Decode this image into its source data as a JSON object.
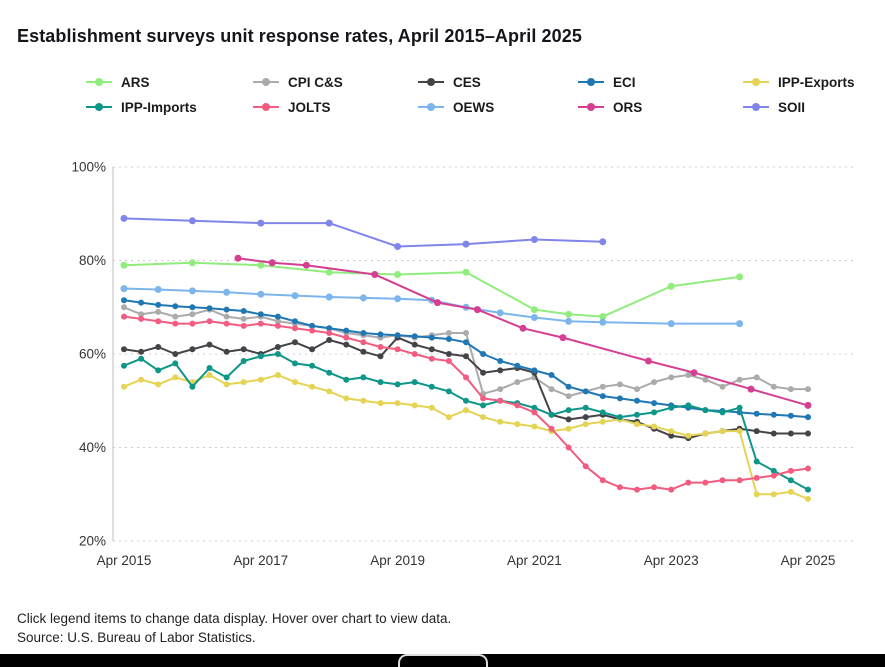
{
  "footer": {
    "hint": "Click legend items to change data display. Hover over chart to view data.",
    "source": "Source: U.S. Bureau of Labor Statistics."
  },
  "chart_data": {
    "type": "line",
    "title": "Establishment surveys unit response rates, April 2015–April 2025",
    "x_unit": "months since April 2015",
    "x_tick_months": [
      0,
      24,
      48,
      72,
      96,
      120
    ],
    "x_tick_labels": [
      "Apr 2015",
      "Apr 2017",
      "Apr 2019",
      "Apr 2021",
      "Apr 2023",
      "Apr 2025"
    ],
    "y_ticks": [
      20,
      40,
      60,
      80,
      100
    ],
    "y_tick_labels": [
      "20%",
      "40%",
      "60%",
      "80%",
      "100%"
    ],
    "ylim": [
      20,
      100
    ],
    "y_format": "percent",
    "grid": "dotted horizontal gridlines",
    "legend_position": "top",
    "series": [
      {
        "name": "ARS",
        "color": "#90ed7d",
        "x": [
          0,
          12,
          24,
          36,
          48,
          60,
          72,
          78,
          84,
          96,
          108
        ],
        "values": [
          79,
          79.5,
          79,
          77.5,
          77,
          77.5,
          69.5,
          68.5,
          68,
          74.5,
          76.5
        ]
      },
      {
        "name": "CPI C&S",
        "color": "#ababab",
        "x": [
          0,
          3,
          6,
          9,
          12,
          15,
          18,
          21,
          24,
          27,
          30,
          33,
          36,
          39,
          42,
          45,
          48,
          51,
          54,
          57,
          60,
          63,
          66,
          69,
          72,
          75,
          78,
          81,
          84,
          87,
          90,
          93,
          96,
          99,
          102,
          105,
          108,
          111,
          114,
          117,
          120
        ],
        "values": [
          70,
          68.5,
          69,
          68,
          68.5,
          69.5,
          68,
          67.5,
          68,
          67,
          66.5,
          66,
          65.5,
          64.5,
          64,
          63.5,
          64,
          63.5,
          64,
          64.5,
          64.5,
          51.5,
          52.5,
          54,
          55,
          52.5,
          51,
          52,
          53,
          53.5,
          52.5,
          54,
          55,
          55.5,
          54.5,
          53,
          54.5,
          55,
          53,
          52.5,
          52.5
        ]
      },
      {
        "name": "CES",
        "color": "#434348",
        "x": [
          0,
          3,
          6,
          9,
          12,
          15,
          18,
          21,
          24,
          27,
          30,
          33,
          36,
          39,
          42,
          45,
          48,
          51,
          54,
          57,
          60,
          63,
          66,
          69,
          72,
          75,
          78,
          81,
          84,
          87,
          90,
          93,
          96,
          99,
          102,
          105,
          108,
          111,
          114,
          117,
          120
        ],
        "values": [
          61,
          60.5,
          61.5,
          60,
          61,
          62,
          60.5,
          61,
          60,
          61.5,
          62.5,
          61,
          63,
          62,
          60.5,
          59.5,
          63.5,
          62,
          61,
          60,
          59.5,
          56,
          56.5,
          57,
          56,
          47,
          46,
          46.5,
          47,
          46,
          45.5,
          44,
          42.5,
          42,
          43,
          43.5,
          44,
          43.5,
          43,
          43,
          43
        ]
      },
      {
        "name": "ECI",
        "color": "#1f77b4",
        "x": [
          0,
          3,
          6,
          9,
          12,
          15,
          18,
          21,
          24,
          27,
          30,
          33,
          36,
          39,
          42,
          45,
          48,
          51,
          54,
          57,
          60,
          63,
          66,
          69,
          72,
          75,
          78,
          81,
          84,
          87,
          90,
          93,
          96,
          99,
          102,
          105,
          108,
          111,
          114,
          117,
          120
        ],
        "values": [
          71.5,
          71,
          70.5,
          70.2,
          70,
          69.8,
          69.5,
          69.2,
          68.5,
          68,
          67,
          66,
          65.5,
          65,
          64.5,
          64.2,
          64,
          63.8,
          63.5,
          63.2,
          62.5,
          60,
          58.5,
          57.5,
          56.5,
          55.5,
          53,
          52,
          51,
          50.5,
          50,
          49.5,
          49,
          48.5,
          48,
          47.8,
          47.5,
          47.2,
          47,
          46.8,
          46.5
        ]
      },
      {
        "name": "IPP-Exports",
        "color": "#e4d354",
        "x": [
          0,
          3,
          6,
          9,
          12,
          15,
          18,
          21,
          24,
          27,
          30,
          33,
          36,
          39,
          42,
          45,
          48,
          51,
          54,
          57,
          60,
          63,
          66,
          69,
          72,
          75,
          78,
          81,
          84,
          87,
          90,
          93,
          96,
          99,
          102,
          105,
          108,
          111,
          114,
          117,
          120
        ],
        "values": [
          53,
          54.5,
          53.5,
          55,
          54,
          55.5,
          53.5,
          54,
          54.5,
          55.5,
          54,
          53,
          52,
          50.5,
          50,
          49.5,
          49.5,
          49,
          48.5,
          46.5,
          48,
          46.5,
          45.5,
          45,
          44.5,
          43.5,
          44,
          45,
          45.5,
          46,
          45,
          44.5,
          43.5,
          42.5,
          43,
          43.5,
          43.5,
          30,
          30,
          30.5,
          29
        ]
      },
      {
        "name": "IPP-Imports",
        "color": "#0e9688",
        "x": [
          0,
          3,
          6,
          9,
          12,
          15,
          18,
          21,
          24,
          27,
          30,
          33,
          36,
          39,
          42,
          45,
          48,
          51,
          54,
          57,
          60,
          63,
          66,
          69,
          72,
          75,
          78,
          81,
          84,
          87,
          90,
          93,
          96,
          99,
          102,
          105,
          108,
          111,
          114,
          117,
          120
        ],
        "values": [
          57.5,
          59,
          56.5,
          58,
          53,
          57,
          55,
          58.5,
          59.5,
          60,
          58,
          57.5,
          56,
          54.5,
          55,
          54,
          53.5,
          54,
          53,
          52,
          50,
          49,
          50,
          49.5,
          48.5,
          47,
          48,
          48.5,
          47.5,
          46.5,
          47,
          47.5,
          48.5,
          49,
          48,
          47.5,
          48.5,
          37,
          35,
          33,
          31
        ]
      },
      {
        "name": "JOLTS",
        "color": "#f15c80",
        "x": [
          0,
          3,
          6,
          9,
          12,
          15,
          18,
          21,
          24,
          27,
          30,
          33,
          36,
          39,
          42,
          45,
          48,
          51,
          54,
          57,
          60,
          63,
          66,
          69,
          72,
          75,
          78,
          81,
          84,
          87,
          90,
          93,
          96,
          99,
          102,
          105,
          108,
          111,
          114,
          117,
          120
        ],
        "values": [
          68,
          67.5,
          67,
          66.5,
          66.5,
          67,
          66.5,
          66,
          66.5,
          66,
          65.5,
          65,
          64.5,
          63.5,
          62.5,
          61.5,
          61,
          60,
          59,
          58.5,
          55,
          50.5,
          50,
          49,
          47.5,
          44,
          40,
          36,
          33,
          31.5,
          31,
          31.5,
          31,
          32.5,
          32.5,
          33,
          33,
          33.5,
          34,
          35,
          35.5
        ]
      },
      {
        "name": "OEWS",
        "color": "#7cb5ec",
        "x": [
          0,
          6,
          12,
          18,
          24,
          30,
          36,
          42,
          48,
          54,
          60,
          66,
          72,
          78,
          84,
          96,
          108
        ],
        "values": [
          74,
          73.8,
          73.5,
          73.2,
          72.8,
          72.5,
          72.2,
          72,
          71.8,
          71.5,
          70,
          68.8,
          67.8,
          67,
          66.8,
          66.5,
          66.5
        ]
      },
      {
        "name": "ORS",
        "color": "#d53e92",
        "x": [
          20,
          26,
          32,
          44,
          55,
          62,
          70,
          77,
          92,
          100,
          110,
          120
        ],
        "values": [
          80.5,
          79.5,
          79,
          77,
          71,
          69.5,
          65.5,
          63.5,
          58.5,
          56,
          52.5,
          49
        ]
      },
      {
        "name": "SOII",
        "color": "#8085e9",
        "x": [
          0,
          12,
          24,
          36,
          48,
          60,
          72,
          84
        ],
        "values": [
          89,
          88.5,
          88,
          88,
          83,
          83.5,
          84.5,
          84
        ]
      }
    ]
  }
}
